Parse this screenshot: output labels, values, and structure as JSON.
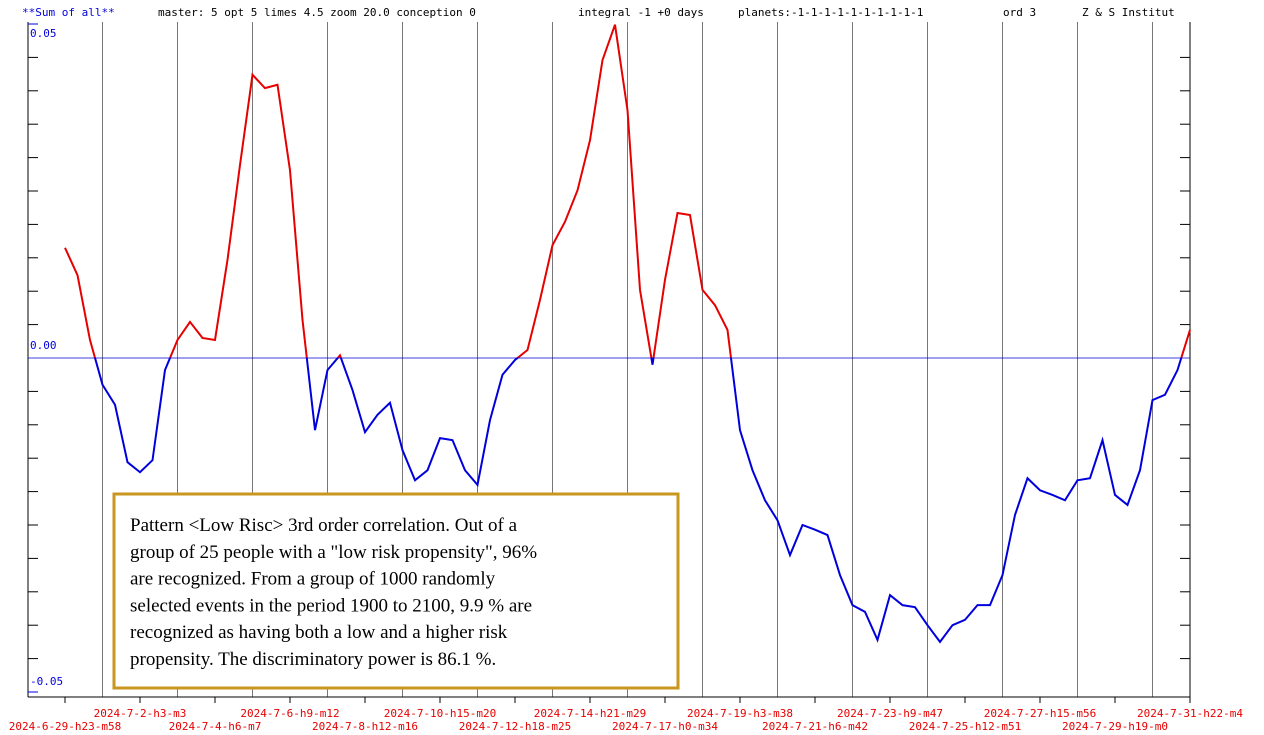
{
  "chart_data": {
    "type": "line",
    "header": [
      "**Sum of all**",
      "master: 5  opt 5 limes 4.5 zoom 20.0  conception 0",
      "integral -1 +0 days",
      "planets:-1-1-1-1-1-1-1-1-1-1",
      "ord 3",
      "Z & S Institut"
    ],
    "annotation": [
      "Pattern <Low Risc> 3rd order correlation. Out of a",
      "group of 25 people with a \"low risk propensity\", 96%",
      "are recognized. From a group of 1000 randomly",
      "selected events in the period 1900 to 2100, 9.9 % are",
      "recognized as having both a low and a higher risk",
      "propensity. The discriminatory power is 86.1 %."
    ],
    "x": [
      3,
      4,
      5,
      6,
      7,
      8,
      9,
      10,
      11,
      12,
      13,
      14,
      15,
      16,
      17,
      18,
      19,
      20,
      21,
      22,
      23,
      24,
      25,
      26,
      27,
      28,
      29,
      30,
      31,
      32,
      33,
      34,
      35,
      36,
      37,
      38,
      39,
      40,
      41,
      42,
      43,
      44,
      45,
      46,
      47,
      48,
      49,
      50,
      51,
      52,
      53,
      54,
      55,
      56,
      57,
      58,
      59,
      60,
      61,
      62,
      63,
      64,
      65,
      66,
      67,
      68,
      69,
      70,
      71,
      72,
      73,
      74,
      75,
      76,
      77,
      78,
      79,
      80,
      81,
      82,
      83,
      84,
      85,
      86,
      87,
      88,
      89,
      90,
      91,
      92,
      93
    ],
    "values": [
      0.0165,
      0.0124,
      0.0027,
      -0.004,
      -0.007,
      -0.0156,
      -0.0171,
      -0.0153,
      -0.0018,
      0.0027,
      0.0054,
      0.003,
      0.0027,
      0.0147,
      0.0289,
      0.0424,
      0.0404,
      0.0409,
      0.0281,
      0.0057,
      -0.0108,
      -0.0018,
      0.0004,
      -0.0048,
      -0.0111,
      -0.0085,
      -0.0067,
      -0.0138,
      -0.0183,
      -0.0168,
      -0.012,
      -0.0123,
      -0.0168,
      -0.019,
      -0.0093,
      -0.0025,
      -0.0003,
      0.0012,
      0.0087,
      0.0169,
      0.0204,
      0.0251,
      0.0326,
      0.0446,
      0.0499,
      0.0371,
      0.0102,
      -0.001,
      0.0117,
      0.0217,
      0.0214,
      0.0102,
      0.0079,
      0.0042,
      -0.0108,
      -0.0168,
      -0.0213,
      -0.0243,
      -0.0295,
      -0.025,
      -0.0257,
      -0.0265,
      -0.0325,
      -0.037,
      -0.038,
      -0.0422,
      -0.0355,
      -0.037,
      -0.0373,
      -0.04,
      -0.0425,
      -0.04,
      -0.0392,
      -0.037,
      -0.037,
      -0.0325,
      -0.0235,
      -0.018,
      -0.0198,
      -0.0205,
      -0.0213,
      -0.0183,
      -0.018,
      -0.0123,
      -0.0205,
      -0.022,
      -0.0168,
      -0.0063,
      -0.0055,
      -0.0018,
      0.0042
    ],
    "pos_color": "#e60000",
    "neg_color": "#0000dd",
    "xlim": [
      0,
      93
    ],
    "xticks": [
      {
        "value": 3,
        "label": "2024-6-29-h23-m58"
      },
      {
        "value": 9,
        "label": "2024-7-2-h3-m3"
      },
      {
        "value": 15,
        "label": "2024-7-4-h6-m7"
      },
      {
        "value": 21,
        "label": "2024-7-6-h9-m12"
      },
      {
        "value": 27,
        "label": "2024-7-8-h12-m16"
      },
      {
        "value": 33,
        "label": "2024-7-10-h15-m20"
      },
      {
        "value": 39,
        "label": "2024-7-12-h18-m25"
      },
      {
        "value": 45,
        "label": "2024-7-14-h21-m29"
      },
      {
        "value": 51,
        "label": "2024-7-17-h0-m34"
      },
      {
        "value": 57,
        "label": "2024-7-19-h3-m38"
      },
      {
        "value": 63,
        "label": "2024-7-21-h6-m42"
      },
      {
        "value": 69,
        "label": "2024-7-23-h9-m47"
      },
      {
        "value": 75,
        "label": "2024-7-25-h12-m51"
      },
      {
        "value": 81,
        "label": "2024-7-27-h15-m56"
      },
      {
        "value": 87,
        "label": "2024-7-29-h19-m0"
      },
      {
        "value": 93,
        "label": "2024-7-31-h22-m4"
      }
    ],
    "xgrid": [
      6,
      12,
      18,
      24,
      30,
      36,
      42,
      48,
      54,
      60,
      66,
      72,
      78,
      84,
      90
    ],
    "ylim": [
      -0.05,
      0.05
    ],
    "yticks": [
      {
        "value": 0.05,
        "label": "0.05"
      },
      {
        "value": 0,
        "label": "0.00"
      },
      {
        "value": -0.05,
        "label": "-0.05"
      }
    ],
    "yminor": [
      0.045,
      0.04,
      0.035,
      0.03,
      0.025,
      0.02,
      0.015,
      0.01,
      0.005,
      -0.005,
      -0.01,
      -0.015,
      -0.02,
      -0.025,
      -0.03,
      -0.035,
      -0.04,
      -0.045
    ]
  }
}
